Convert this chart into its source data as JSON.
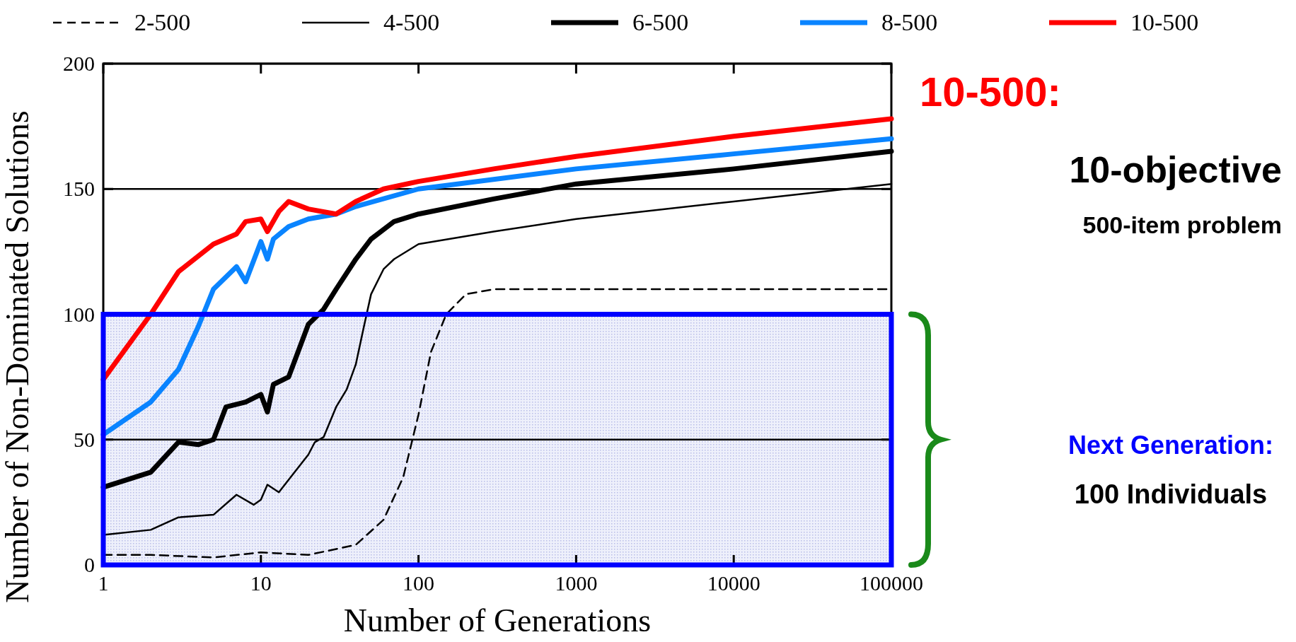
{
  "chart_data": {
    "type": "line",
    "xlabel": "Number of Generations",
    "ylabel": "Number of Non-Dominated Solutions",
    "log": "x",
    "xlim": [
      1,
      100000
    ],
    "xticks": [
      1,
      10,
      100,
      1000,
      10000,
      100000
    ],
    "ylim": [
      0,
      200
    ],
    "yticks": [
      0,
      50,
      100,
      150,
      200
    ],
    "grid": "y",
    "legend": "top",
    "series": [
      {
        "name": "2-500",
        "color": "#000000",
        "line_style": "dashed",
        "x": [
          1,
          2,
          5,
          10,
          20,
          40,
          60,
          80,
          100,
          120,
          150,
          200,
          300,
          1000,
          10000,
          100000
        ],
        "values": [
          4,
          4,
          3,
          5,
          4,
          8,
          18,
          35,
          60,
          85,
          100,
          108,
          110,
          110,
          110,
          110
        ]
      },
      {
        "name": "4-500",
        "color": "#000000",
        "line_style": "solid",
        "x": [
          1,
          2,
          3,
          5,
          7,
          9,
          10,
          11,
          13,
          15,
          20,
          22,
          25,
          30,
          35,
          40,
          45,
          50,
          60,
          70,
          100,
          300,
          1000,
          10000,
          100000
        ],
        "values": [
          12,
          14,
          19,
          20,
          28,
          24,
          26,
          32,
          29,
          34,
          44,
          49,
          51,
          63,
          70,
          80,
          95,
          108,
          118,
          122,
          128,
          133,
          138,
          145,
          152
        ]
      },
      {
        "name": "6-500",
        "color": "#000000",
        "line_style": "solid",
        "x": [
          1,
          2,
          3,
          4,
          5,
          6,
          8,
          10,
          11,
          12,
          15,
          20,
          25,
          30,
          40,
          50,
          70,
          100,
          300,
          1000,
          10000,
          100000
        ],
        "values": [
          31,
          37,
          49,
          48,
          50,
          63,
          65,
          68,
          61,
          72,
          75,
          96,
          102,
          110,
          122,
          130,
          137,
          140,
          146,
          152,
          158,
          165
        ]
      },
      {
        "name": "8-500",
        "color": "#0a84ff",
        "line_style": "solid",
        "x": [
          1,
          2,
          3,
          4,
          5,
          7,
          8,
          10,
          11,
          12,
          15,
          20,
          30,
          40,
          100,
          1000,
          10000,
          100000
        ],
        "values": [
          52,
          65,
          78,
          95,
          110,
          119,
          113,
          129,
          122,
          130,
          135,
          138,
          140,
          143,
          150,
          158,
          164,
          170
        ]
      },
      {
        "name": "10-500",
        "color": "#ff0000",
        "line_style": "solid",
        "x": [
          1,
          2,
          3,
          5,
          7,
          8,
          10,
          11,
          13,
          15,
          20,
          30,
          40,
          60,
          100,
          300,
          1000,
          10000,
          100000
        ],
        "values": [
          74,
          100,
          117,
          128,
          132,
          137,
          138,
          133,
          141,
          145,
          142,
          140,
          145,
          150,
          153,
          158,
          163,
          171,
          178
        ]
      }
    ],
    "bands": [
      {
        "axis": "y",
        "from": 0,
        "to": 100,
        "color": "#0000ff"
      }
    ],
    "annotations": [
      "10-500:",
      "10-objective",
      "500-item problem",
      "Next Generation:",
      "100 Individuals"
    ]
  }
}
